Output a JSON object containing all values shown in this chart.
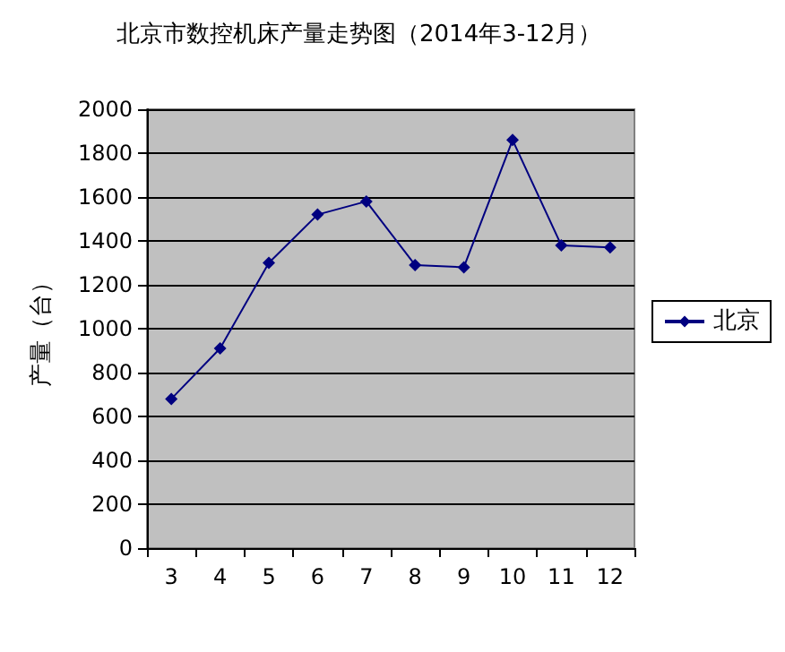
{
  "chart_data": {
    "type": "line",
    "title": "北京市数控机床产量走势图（2014年3-12月）",
    "ylabel": "产量（台）",
    "categories": [
      "3",
      "4",
      "5",
      "6",
      "7",
      "8",
      "9",
      "10",
      "11",
      "12"
    ],
    "series": [
      {
        "name": "北京",
        "color": "#000080",
        "values": [
          680,
          910,
          1300,
          1520,
          1580,
          1290,
          1280,
          1860,
          1380,
          1370
        ]
      }
    ],
    "ylim": [
      0,
      2000
    ],
    "yticks": [
      0,
      200,
      400,
      600,
      800,
      1000,
      1200,
      1400,
      1600,
      1800,
      2000
    ],
    "grid": "y",
    "legend": "right",
    "marker": "diamond",
    "line_style": "solid"
  }
}
